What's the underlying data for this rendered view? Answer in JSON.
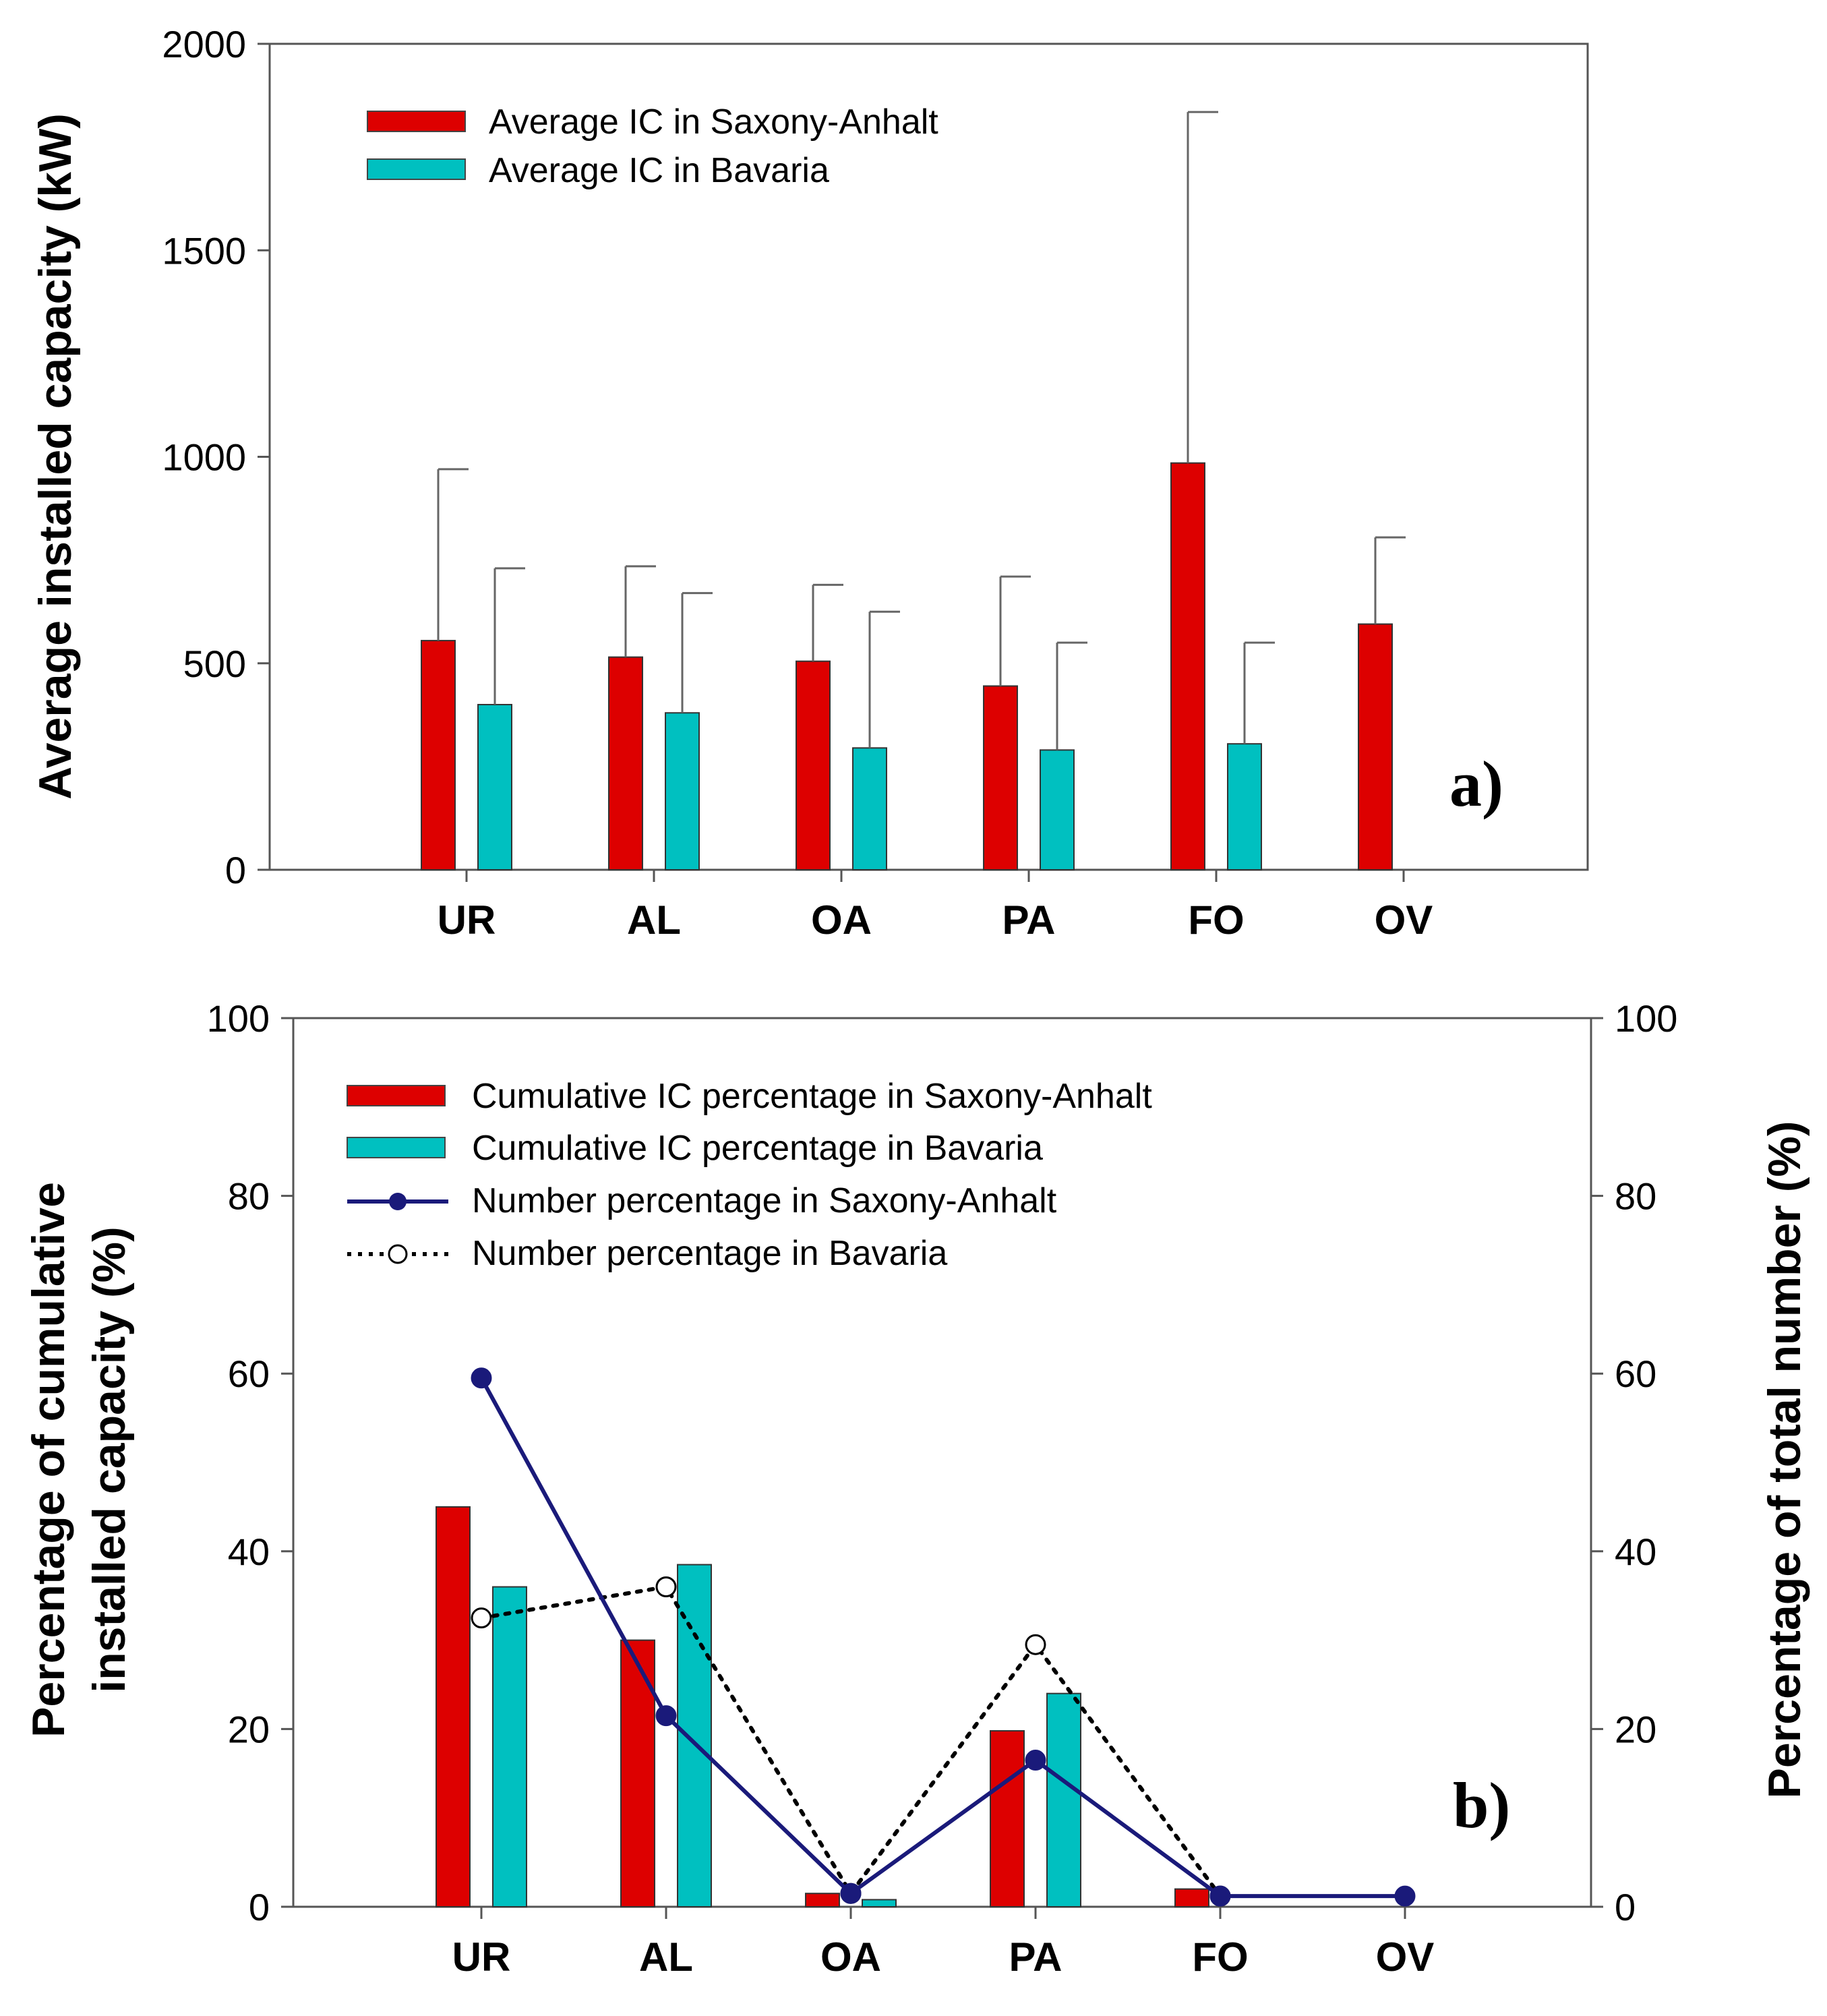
{
  "colors": {
    "red": "#dd0000",
    "teal": "#00c0c0",
    "navy": "#1a1a7a",
    "axis": "#555555"
  },
  "chart_data": [
    {
      "type": "bar",
      "categories": [
        "UR",
        "AL",
        "OA",
        "PA",
        "FO",
        "OV"
      ],
      "ylabel": "Average installed capacity (kW)",
      "ylim": [
        0,
        2000
      ],
      "yticks": [
        "0",
        "500",
        "1000",
        "1500",
        "2000"
      ],
      "panel_label": "a)",
      "legend_position": "top-left",
      "series": [
        {
          "name": "Average IC in Saxony-Anhalt",
          "color": "#dd0000",
          "values": [
            555,
            515,
            505,
            445,
            985,
            595
          ],
          "error_upper": [
            970,
            735,
            690,
            710,
            1835,
            805
          ]
        },
        {
          "name": "Average IC in Bavaria",
          "color": "#00c0c0",
          "values": [
            400,
            380,
            295,
            290,
            305,
            null
          ],
          "error_upper": [
            730,
            670,
            625,
            550,
            550,
            null
          ]
        }
      ]
    },
    {
      "type": "bar",
      "categories": [
        "UR",
        "AL",
        "OA",
        "PA",
        "FO",
        "OV"
      ],
      "ylabel_line1": "Percentage of cumulative",
      "ylabel_line2": "installed capacity (%)",
      "y2label": "Percentage of total number (%)",
      "ylim": [
        0,
        100
      ],
      "yticks": [
        "0",
        "20",
        "40",
        "60",
        "80",
        "100"
      ],
      "panel_label": "b)",
      "legend_position": "top-left",
      "series": [
        {
          "name": "Cumulative IC percentage in Saxony-Anhalt",
          "kind": "bar",
          "color": "#dd0000",
          "values": [
            45,
            30,
            1.5,
            19.8,
            2,
            0
          ]
        },
        {
          "name": "Cumulative IC percentage in Bavaria",
          "kind": "bar",
          "color": "#00c0c0",
          "values": [
            36,
            38.5,
            0.8,
            24,
            0,
            0
          ]
        },
        {
          "name": "Number percentage in Saxony-Anhalt",
          "kind": "line",
          "color": "#1a1a7a",
          "values": [
            59.5,
            21.5,
            1.5,
            16.5,
            1.2,
            1.2
          ]
        },
        {
          "name": "Number percentage in Bavaria",
          "kind": "dotted-line",
          "color": "#000000",
          "values": [
            32.5,
            36,
            1.5,
            29.5,
            1.2,
            null
          ]
        }
      ]
    }
  ]
}
